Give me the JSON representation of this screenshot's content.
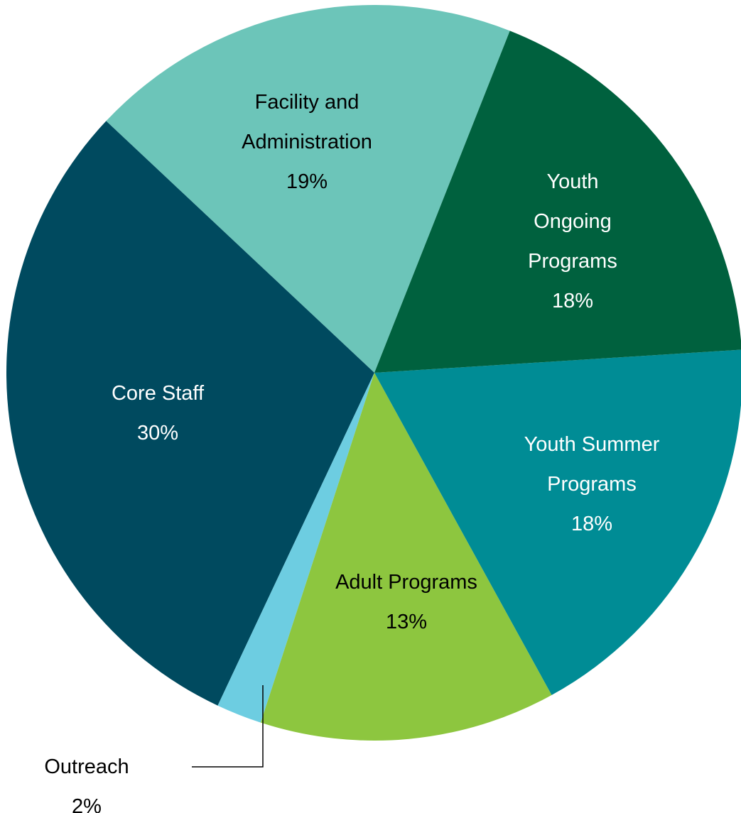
{
  "chart_data": {
    "type": "pie",
    "categories": [
      "Youth Ongoing Programs",
      "Youth Summer Programs",
      "Adult Programs",
      "Outreach",
      "Core Staff",
      "Facility and Administration"
    ],
    "values": [
      18,
      18,
      13,
      2,
      30,
      19
    ],
    "value_labels": [
      "18%",
      "18%",
      "13%",
      "2%",
      "30%",
      "19%"
    ],
    "colors": [
      "#00613e",
      "#008c95",
      "#8dc63f",
      "#6dcde1",
      "#004a5f",
      "#6cc5b9"
    ]
  }
}
